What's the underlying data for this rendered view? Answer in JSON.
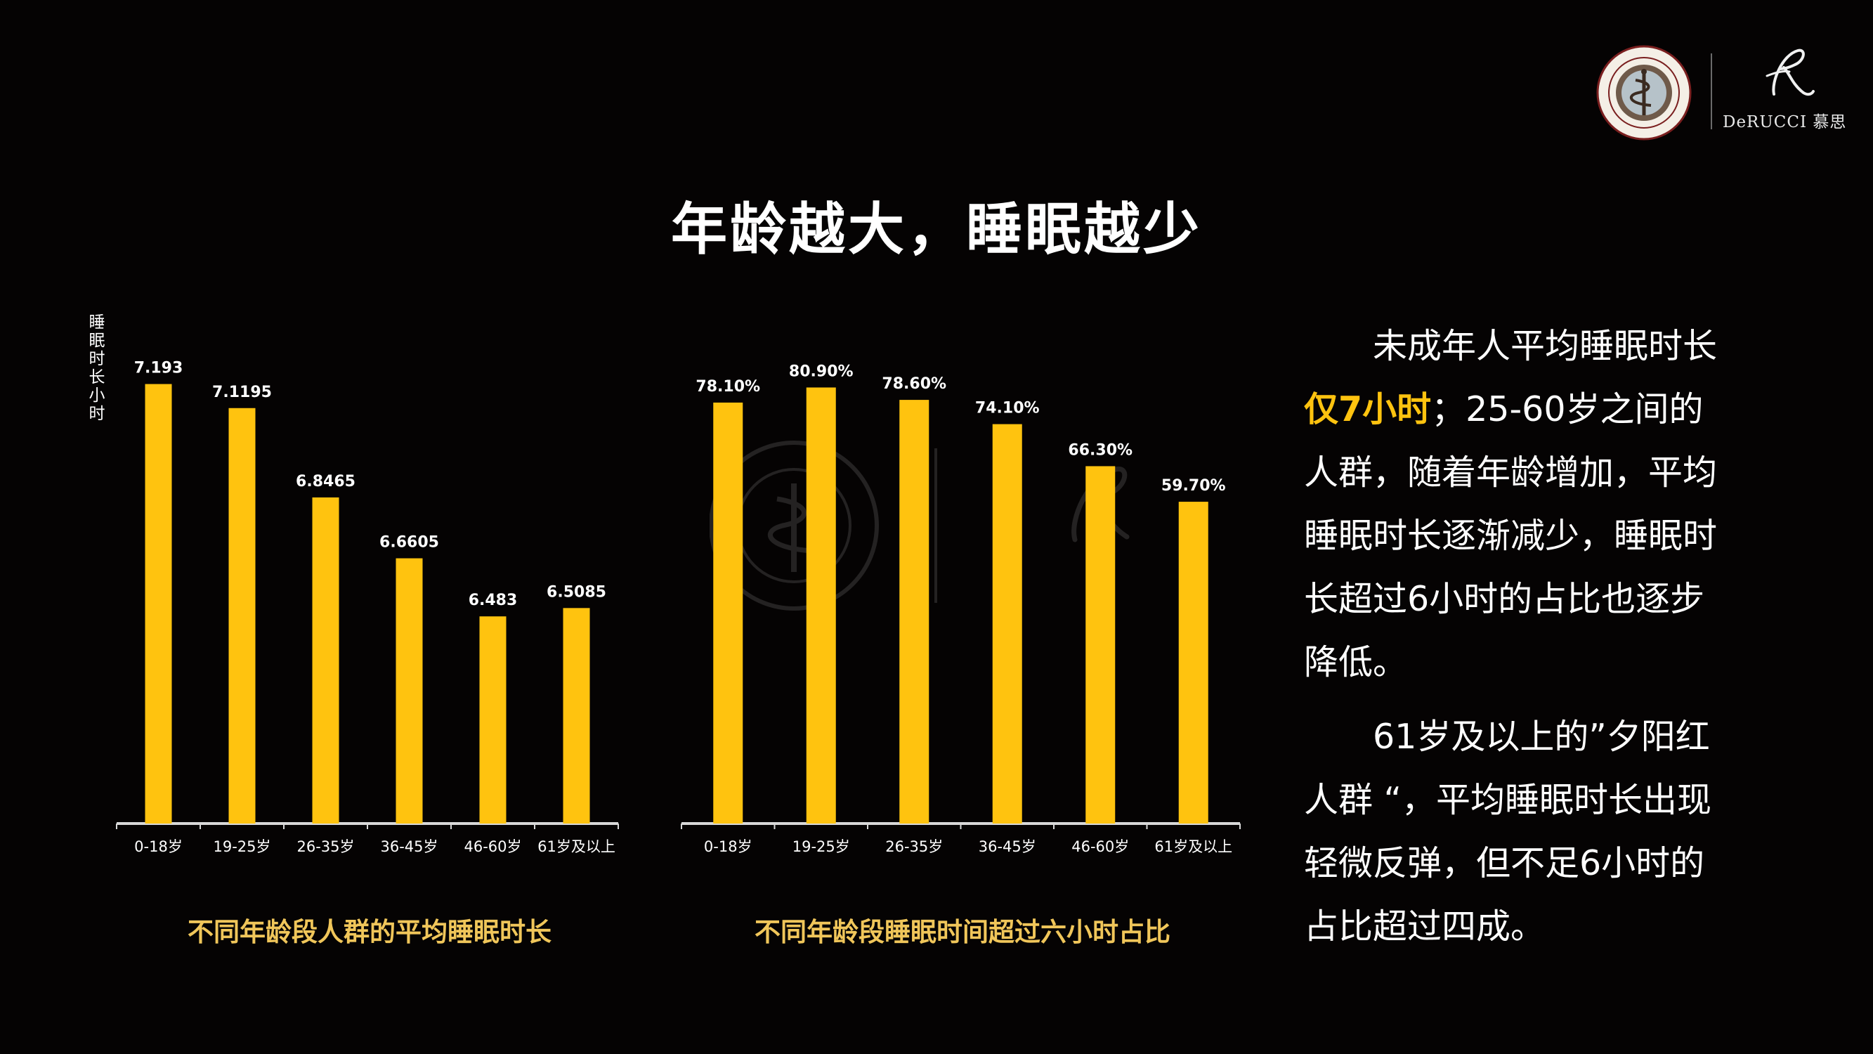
{
  "title": "年龄越大，睡眠越少",
  "brand": {
    "logo_text": "DeRUCCI 慕思"
  },
  "colors": {
    "bar": "#ffc30f",
    "caption": "#f0c65a",
    "highlight": "#ffc30f",
    "background": "#050303"
  },
  "chart_data": [
    {
      "type": "bar",
      "title": "不同年龄段人群的平均睡眠时长",
      "ylabel": "睡眠时长 小时",
      "xlabel": "",
      "categories": [
        "0-18岁",
        "19-25岁",
        "26-35岁",
        "36-45岁",
        "46-60岁",
        "61岁及以上"
      ],
      "values": [
        7.193,
        7.1195,
        6.8465,
        6.6605,
        6.483,
        6.5085
      ],
      "value_labels": [
        "7.193",
        "7.1195",
        "6.8465",
        "6.6605",
        "6.483",
        "6.5085"
      ],
      "ylim": [
        5.85,
        7.25
      ],
      "grid": false,
      "legend": "none"
    },
    {
      "type": "bar",
      "title": "不同年龄段睡眠时间超过六小时占比",
      "ylabel": "",
      "xlabel": "",
      "categories": [
        "0-18岁",
        "19-25岁",
        "26-35岁",
        "36-45岁",
        "46-60岁",
        "61岁及以上"
      ],
      "values": [
        78.1,
        80.9,
        78.6,
        74.1,
        66.3,
        59.7
      ],
      "value_labels": [
        "78.10%",
        "80.90%",
        "78.60%",
        "74.10%",
        "66.30%",
        "59.70%"
      ],
      "ylim": [
        0,
        85
      ],
      "grid": false,
      "legend": "none"
    }
  ],
  "description": {
    "p1_a": "未成年人平均睡眠时长",
    "p1_highlight": "仅7小时",
    "p1_b": "；25-60岁之间的人群，随着年龄增加，平均睡眠时长逐渐减少，睡眠时长超过6小时的占比也逐步降低。",
    "p2": "61岁及以上的”夕阳红人群 “，平均睡眠时长出现轻微反弹，但不足6小时的占比超过四成。"
  }
}
